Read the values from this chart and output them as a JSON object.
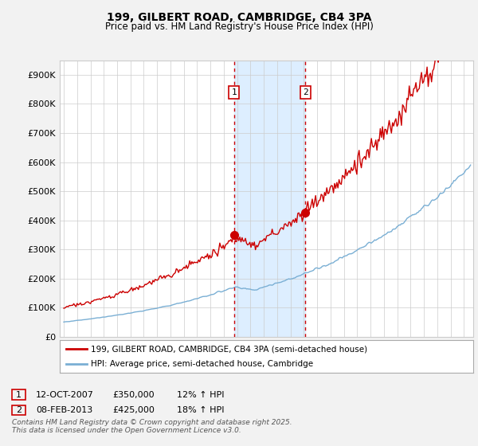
{
  "title1": "199, GILBERT ROAD, CAMBRIDGE, CB4 3PA",
  "title2": "Price paid vs. HM Land Registry's House Price Index (HPI)",
  "ytick_values": [
    0,
    100000,
    200000,
    300000,
    400000,
    500000,
    600000,
    700000,
    800000,
    900000
  ],
  "ylim": [
    0,
    950000
  ],
  "xlim_start": 1994.7,
  "xlim_end": 2025.7,
  "sale1_x": 2007.78,
  "sale1_y": 350000,
  "sale1_label": "1",
  "sale2_x": 2013.1,
  "sale2_y": 425000,
  "sale2_label": "2",
  "vline1_x": 2007.78,
  "vline2_x": 2013.1,
  "shade_start": 2007.78,
  "shade_end": 2013.1,
  "legend1_label": "199, GILBERT ROAD, CAMBRIDGE, CB4 3PA (semi-detached house)",
  "legend2_label": "HPI: Average price, semi-detached house, Cambridge",
  "footer": "Contains HM Land Registry data © Crown copyright and database right 2025.\nThis data is licensed under the Open Government Licence v3.0.",
  "red_color": "#cc0000",
  "blue_color": "#7aafd4",
  "shade_color": "#ddeeff",
  "background_color": "#f2f2f2",
  "plot_bg_color": "#ffffff",
  "grid_color": "#cccccc"
}
